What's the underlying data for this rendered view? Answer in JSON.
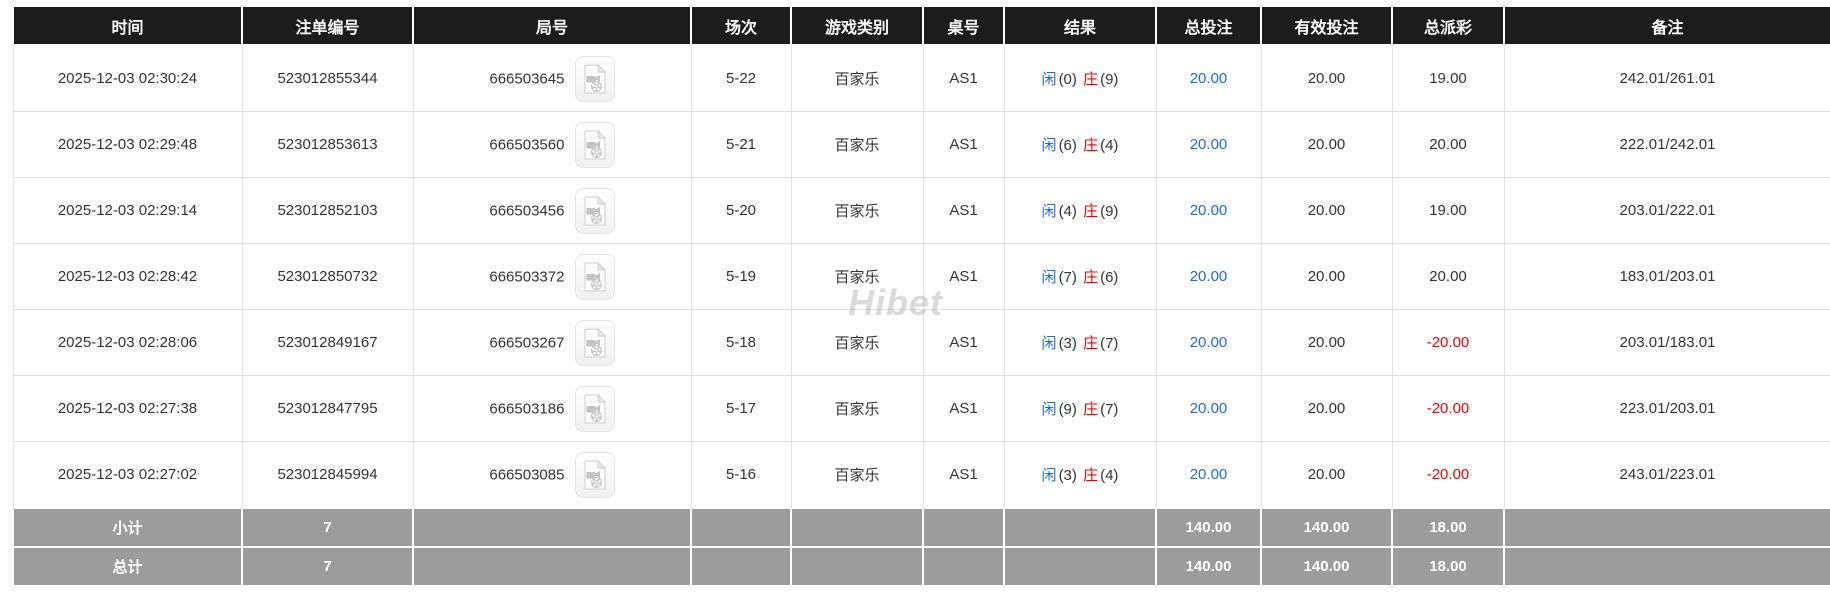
{
  "colors": {
    "header_bg": "#1c1c1c",
    "header_text": "#ffffff",
    "summary_bg": "#9c9c9c",
    "body_text": "#333333",
    "accent_blue": "#2069e0",
    "accent_red": "#f00000",
    "grid_line": "#e2e2e2"
  },
  "watermark": "Hibet",
  "icons": {
    "video": "video-replay-file-icon"
  },
  "table": {
    "headers": [
      {
        "key": "time",
        "label": "时间"
      },
      {
        "key": "bet-no",
        "label": "注单编号"
      },
      {
        "key": "round-no",
        "label": "局号"
      },
      {
        "key": "session",
        "label": "场次"
      },
      {
        "key": "game-type",
        "label": "游戏类别"
      },
      {
        "key": "table-no",
        "label": "桌号"
      },
      {
        "key": "result",
        "label": "结果"
      },
      {
        "key": "total-bet",
        "label": "总投注"
      },
      {
        "key": "valid-bet",
        "label": "有效投注"
      },
      {
        "key": "total-payout",
        "label": "总派彩"
      },
      {
        "key": "remark",
        "label": "备注"
      }
    ],
    "result_labels": {
      "player": "闲",
      "banker": "庄"
    },
    "rows": [
      {
        "time": "2025-12-03 02:30:24",
        "bet_no": "523012855344",
        "game_no": "666503645",
        "session": "5-22",
        "game_type": "百家乐",
        "table_no": "AS1",
        "player_score": "(0)",
        "banker_score": "(9)",
        "total_bet": "20.00",
        "valid_bet": "20.00",
        "payout": "19.00",
        "remark": "242.01/261.01"
      },
      {
        "time": "2025-12-03 02:29:48",
        "bet_no": "523012853613",
        "game_no": "666503560",
        "session": "5-21",
        "game_type": "百家乐",
        "table_no": "AS1",
        "player_score": "(6)",
        "banker_score": "(4)",
        "total_bet": "20.00",
        "valid_bet": "20.00",
        "payout": "20.00",
        "remark": "222.01/242.01"
      },
      {
        "time": "2025-12-03 02:29:14",
        "bet_no": "523012852103",
        "game_no": "666503456",
        "session": "5-20",
        "game_type": "百家乐",
        "table_no": "AS1",
        "player_score": "(4)",
        "banker_score": "(9)",
        "total_bet": "20.00",
        "valid_bet": "20.00",
        "payout": "19.00",
        "remark": "203.01/222.01"
      },
      {
        "time": "2025-12-03 02:28:42",
        "bet_no": "523012850732",
        "game_no": "666503372",
        "session": "5-19",
        "game_type": "百家乐",
        "table_no": "AS1",
        "player_score": "(7)",
        "banker_score": "(6)",
        "total_bet": "20.00",
        "valid_bet": "20.00",
        "payout": "20.00",
        "remark": "183.01/203.01"
      },
      {
        "time": "2025-12-03 02:28:06",
        "bet_no": "523012849167",
        "game_no": "666503267",
        "session": "5-18",
        "game_type": "百家乐",
        "table_no": "AS1",
        "player_score": "(3)",
        "banker_score": "(7)",
        "total_bet": "20.00",
        "valid_bet": "20.00",
        "payout": "-20.00",
        "remark": "203.01/183.01"
      },
      {
        "time": "2025-12-03 02:27:38",
        "bet_no": "523012847795",
        "game_no": "666503186",
        "session": "5-17",
        "game_type": "百家乐",
        "table_no": "AS1",
        "player_score": "(9)",
        "banker_score": "(7)",
        "total_bet": "20.00",
        "valid_bet": "20.00",
        "payout": "-20.00",
        "remark": "223.01/203.01"
      },
      {
        "time": "2025-12-03 02:27:02",
        "bet_no": "523012845994",
        "game_no": "666503085",
        "session": "5-16",
        "game_type": "百家乐",
        "table_no": "AS1",
        "player_score": "(3)",
        "banker_score": "(4)",
        "total_bet": "20.00",
        "valid_bet": "20.00",
        "payout": "-20.00",
        "remark": "243.01/223.01"
      }
    ],
    "subtotal": {
      "label": "小计",
      "count": "7",
      "total_bet": "140.00",
      "valid_bet": "140.00",
      "payout": "18.00"
    },
    "total": {
      "label": "总计",
      "count": "7",
      "total_bet": "140.00",
      "valid_bet": "140.00",
      "payout": "18.00"
    }
  }
}
